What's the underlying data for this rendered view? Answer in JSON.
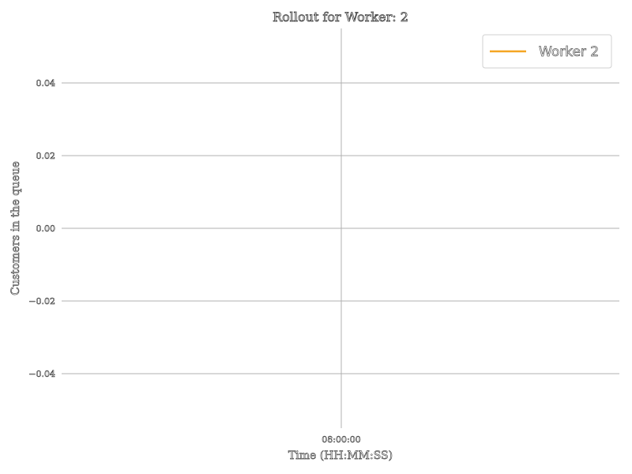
{
  "chart_data": {
    "type": "line",
    "title": "Rollout for Worker: 2",
    "xlabel": "Time (HH:MM:SS)",
    "ylabel": "Customers in the queue",
    "x_ticks": [
      "08:00:00"
    ],
    "y_ticks": [
      "0.04",
      "0.02",
      "0.00",
      "−0.02",
      "−0.04"
    ],
    "ylim": [
      -0.055,
      0.055
    ],
    "grid": true,
    "legend_position": "top-right",
    "series": [
      {
        "name": "Worker 2",
        "color": "#f5a623",
        "x": [
          "08:00:00"
        ],
        "values": [
          0
        ]
      }
    ]
  }
}
